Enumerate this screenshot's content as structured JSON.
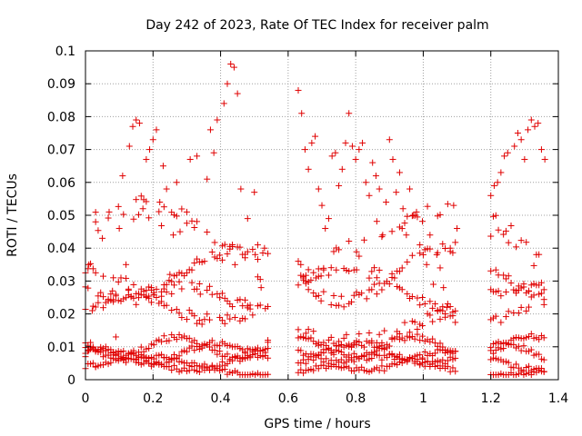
{
  "chart_data": {
    "type": "scatter",
    "title": "Day 242 of 2023, Rate Of TEC Index for receiver palm",
    "xlabel": "GPS time / hours",
    "ylabel": "ROTI / TECUs",
    "xlim": [
      0,
      1.4
    ],
    "ylim": [
      0,
      0.1
    ],
    "xticks": [
      "0",
      "0.2",
      "0.4",
      "0.6",
      "0.8",
      "1",
      "1.2",
      "1.4"
    ],
    "yticks": [
      "0",
      "0.01",
      "0.02",
      "0.03",
      "0.04",
      "0.05",
      "0.06",
      "0.07",
      "0.08",
      "0.09",
      "0.1"
    ],
    "grid": true,
    "marker": "+",
    "color": "#e00000",
    "segments": [
      {
        "x_start": 0.0,
        "x_end": 0.54
      },
      {
        "x_start": 0.63,
        "x_end": 1.1
      },
      {
        "x_start": 1.2,
        "x_end": 1.36
      }
    ],
    "series": [
      {
        "name": "ROTI",
        "points": [
          [
            0.0,
            0.007
          ],
          [
            0.01,
            0.009
          ],
          [
            0.01,
            0.035
          ],
          [
            0.02,
            0.021
          ],
          [
            0.03,
            0.048
          ],
          [
            0.03,
            0.004
          ],
          [
            0.05,
            0.043
          ],
          [
            0.06,
            0.01
          ],
          [
            0.07,
            0.051
          ],
          [
            0.08,
            0.027
          ],
          [
            0.09,
            0.013
          ],
          [
            0.1,
            0.046
          ],
          [
            0.11,
            0.062
          ],
          [
            0.12,
            0.035
          ],
          [
            0.13,
            0.071
          ],
          [
            0.14,
            0.077
          ],
          [
            0.15,
            0.079
          ],
          [
            0.16,
            0.078
          ],
          [
            0.17,
            0.052
          ],
          [
            0.18,
            0.067
          ],
          [
            0.19,
            0.07
          ],
          [
            0.2,
            0.073
          ],
          [
            0.21,
            0.076
          ],
          [
            0.22,
            0.054
          ],
          [
            0.23,
            0.065
          ],
          [
            0.24,
            0.058
          ],
          [
            0.25,
            0.032
          ],
          [
            0.26,
            0.044
          ],
          [
            0.27,
            0.06
          ],
          [
            0.28,
            0.045
          ],
          [
            0.3,
            0.051
          ],
          [
            0.31,
            0.067
          ],
          [
            0.33,
            0.068
          ],
          [
            0.34,
            0.026
          ],
          [
            0.36,
            0.061
          ],
          [
            0.37,
            0.076
          ],
          [
            0.38,
            0.069
          ],
          [
            0.39,
            0.079
          ],
          [
            0.41,
            0.084
          ],
          [
            0.42,
            0.09
          ],
          [
            0.43,
            0.096
          ],
          [
            0.44,
            0.095
          ],
          [
            0.45,
            0.087
          ],
          [
            0.46,
            0.058
          ],
          [
            0.48,
            0.049
          ],
          [
            0.5,
            0.057
          ],
          [
            0.51,
            0.041
          ],
          [
            0.52,
            0.028
          ],
          [
            0.53,
            0.04
          ],
          [
            0.54,
            0.012
          ],
          [
            0.63,
            0.088
          ],
          [
            0.64,
            0.081
          ],
          [
            0.65,
            0.07
          ],
          [
            0.66,
            0.064
          ],
          [
            0.67,
            0.072
          ],
          [
            0.68,
            0.074
          ],
          [
            0.69,
            0.058
          ],
          [
            0.7,
            0.053
          ],
          [
            0.71,
            0.046
          ],
          [
            0.72,
            0.049
          ],
          [
            0.73,
            0.068
          ],
          [
            0.74,
            0.069
          ],
          [
            0.75,
            0.059
          ],
          [
            0.76,
            0.064
          ],
          [
            0.77,
            0.072
          ],
          [
            0.78,
            0.081
          ],
          [
            0.79,
            0.071
          ],
          [
            0.8,
            0.067
          ],
          [
            0.81,
            0.07
          ],
          [
            0.82,
            0.072
          ],
          [
            0.83,
            0.06
          ],
          [
            0.84,
            0.056
          ],
          [
            0.85,
            0.066
          ],
          [
            0.86,
            0.062
          ],
          [
            0.87,
            0.058
          ],
          [
            0.88,
            0.044
          ],
          [
            0.89,
            0.054
          ],
          [
            0.9,
            0.073
          ],
          [
            0.91,
            0.067
          ],
          [
            0.92,
            0.057
          ],
          [
            0.93,
            0.063
          ],
          [
            0.94,
            0.052
          ],
          [
            0.95,
            0.044
          ],
          [
            0.96,
            0.058
          ],
          [
            0.97,
            0.05
          ],
          [
            0.98,
            0.051
          ],
          [
            0.99,
            0.041
          ],
          [
            1.0,
            0.038
          ],
          [
            1.01,
            0.035
          ],
          [
            1.02,
            0.044
          ],
          [
            1.03,
            0.029
          ],
          [
            1.04,
            0.038
          ],
          [
            1.05,
            0.034
          ],
          [
            1.06,
            0.028
          ],
          [
            1.07,
            0.022
          ],
          [
            1.08,
            0.04
          ],
          [
            1.09,
            0.053
          ],
          [
            1.1,
            0.046
          ],
          [
            1.2,
            0.056
          ],
          [
            1.21,
            0.059
          ],
          [
            1.22,
            0.06
          ],
          [
            1.23,
            0.063
          ],
          [
            1.24,
            0.068
          ],
          [
            1.25,
            0.069
          ],
          [
            1.27,
            0.071
          ],
          [
            1.28,
            0.075
          ],
          [
            1.29,
            0.073
          ],
          [
            1.3,
            0.067
          ],
          [
            1.31,
            0.076
          ],
          [
            1.32,
            0.079
          ],
          [
            1.33,
            0.077
          ],
          [
            1.34,
            0.078
          ],
          [
            1.35,
            0.07
          ],
          [
            1.36,
            0.067
          ]
        ]
      }
    ]
  }
}
